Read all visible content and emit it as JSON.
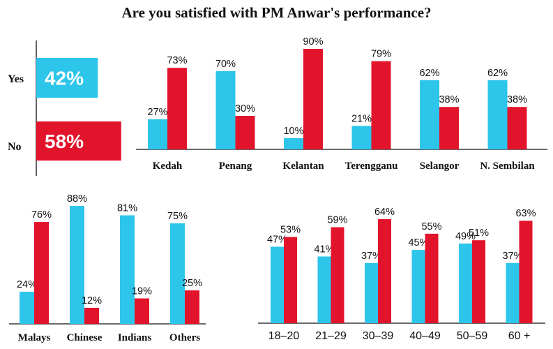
{
  "title": "Are you satisfied with PM Anwar's performance?",
  "colors": {
    "yes": "#2ec5ea",
    "no": "#e2142c"
  },
  "chart_data": [
    {
      "id": "overall",
      "type": "bar",
      "orientation": "horizontal",
      "categories": [
        "Yes",
        "No"
      ],
      "values": [
        42,
        58
      ],
      "labels": [
        "42%",
        "58%"
      ]
    },
    {
      "id": "states",
      "type": "bar",
      "categories": [
        "Kedah",
        "Penang",
        "Kelantan",
        "Terengganu",
        "Selangor",
        "N. Sembilan"
      ],
      "series": [
        {
          "values": [
            27,
            70,
            10,
            21,
            62,
            62
          ],
          "labels": [
            "27%",
            "70%",
            "10%",
            "21%",
            "62%",
            "62%"
          ]
        },
        {
          "values": [
            73,
            30,
            90,
            79,
            38,
            38
          ],
          "labels": [
            "73%",
            "30%",
            "90%",
            "79%",
            "38%",
            "38%"
          ]
        }
      ]
    },
    {
      "id": "ethnicity",
      "type": "bar",
      "categories": [
        "Malays",
        "Chinese",
        "Indians",
        "Others"
      ],
      "series": [
        {
          "values": [
            24,
            88,
            81,
            75
          ],
          "labels": [
            "24%",
            "88%",
            "81%",
            "75%"
          ]
        },
        {
          "values": [
            76,
            12,
            19,
            25
          ],
          "labels": [
            "76%",
            "12%",
            "19%",
            "25%"
          ]
        }
      ]
    },
    {
      "id": "age",
      "type": "bar",
      "categories": [
        "18–20",
        "21–29",
        "30–39",
        "40–49",
        "50–59",
        "60 +"
      ],
      "series": [
        {
          "values": [
            47,
            41,
            37,
            45,
            49,
            37
          ],
          "labels": [
            "47%",
            "41%",
            "37%",
            "45%",
            "49%",
            "37%"
          ]
        },
        {
          "values": [
            53,
            59,
            64,
            55,
            51,
            63
          ],
          "labels": [
            "53%",
            "59%",
            "64%",
            "55%",
            "51%",
            "63%"
          ]
        }
      ]
    }
  ]
}
